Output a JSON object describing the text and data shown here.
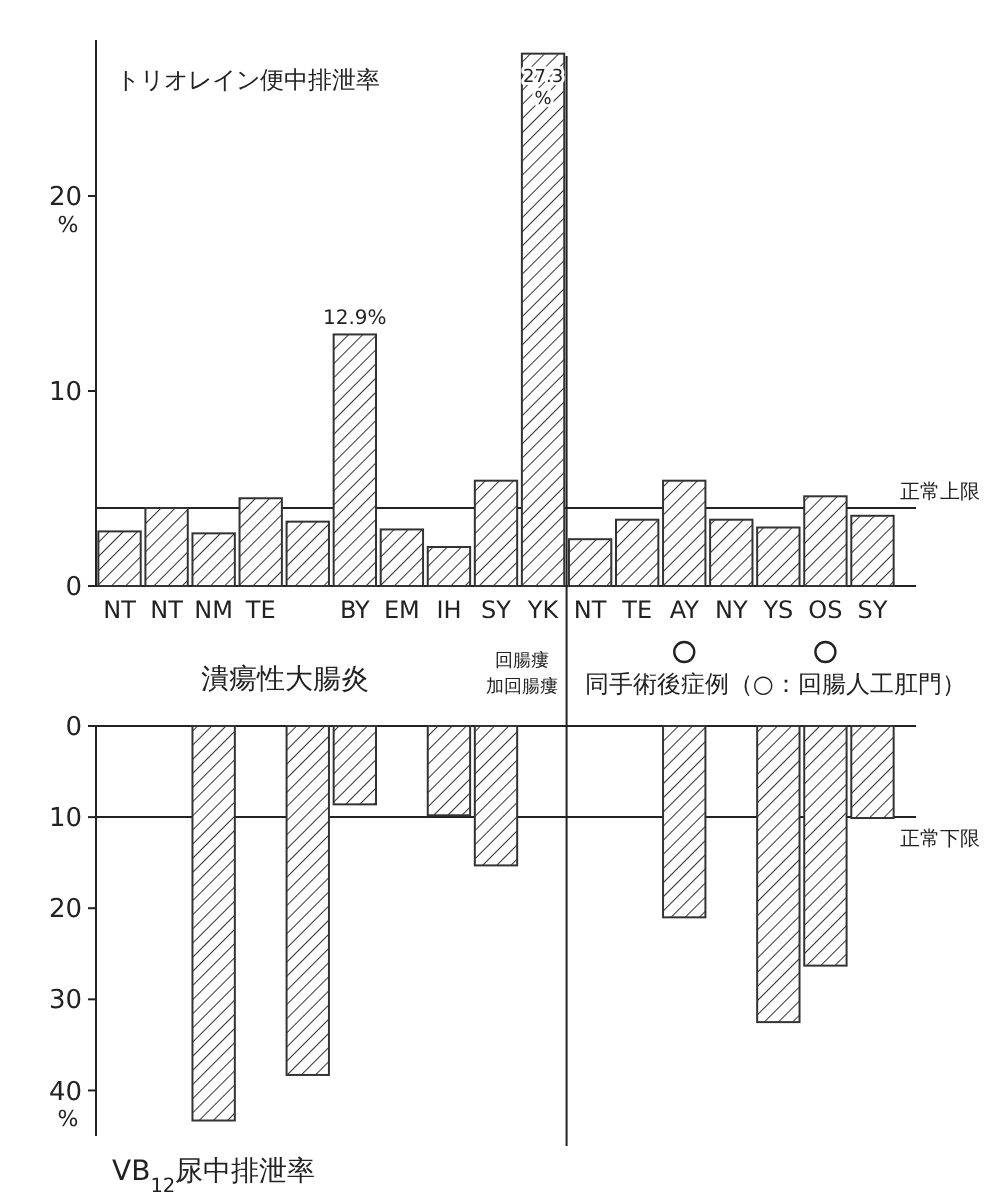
{
  "chart_data": [
    {
      "type": "bar",
      "title": "トリオレイン便中排泄率",
      "ylabel": "%",
      "categories": [
        "NT",
        "NT",
        "NM",
        "TE",
        null,
        "BY",
        "EM",
        "IH",
        "SY",
        "YK",
        "NT",
        "TE",
        "AY",
        "NY",
        "YS",
        "OS",
        "SY"
      ],
      "values": [
        2.8,
        4.0,
        2.7,
        4.5,
        3.3,
        12.9,
        2.9,
        2.0,
        5.4,
        27.3,
        2.4,
        3.4,
        5.4,
        3.4,
        3.0,
        4.6,
        3.6
      ],
      "value_labels": [
        null,
        null,
        null,
        null,
        null,
        "12.9%",
        null,
        null,
        null,
        "27.3 %",
        null,
        null,
        null,
        null,
        null,
        null,
        null
      ],
      "color": "#333333",
      "ylim": [
        0,
        28
      ],
      "yticks": [
        0,
        10,
        20
      ],
      "ref_lines": [
        {
          "axis": "y",
          "value": 4,
          "label": "正常上限"
        }
      ],
      "annotations": [
        "潰瘍性大腸炎",
        "回腸瘻",
        "加回腸瘻",
        "同手術後症例（○：回腸人工肛門）"
      ]
    },
    {
      "type": "bar",
      "title": "VB$_{12}$尿中排泄率",
      "ylabel": "%",
      "categories": [
        null,
        null,
        null,
        null,
        null,
        null,
        null,
        null,
        null,
        null,
        null,
        null,
        null,
        null,
        null,
        null,
        null
      ],
      "values": [
        null,
        null,
        43.3,
        null,
        38.3,
        8.6,
        null,
        9.8,
        15.3,
        null,
        null,
        null,
        21.0,
        null,
        32.5,
        26.3,
        10.1
      ],
      "color": "#333333",
      "ylim": [
        45,
        0
      ],
      "yticks": [
        0,
        10,
        20,
        30,
        40
      ],
      "tick_labels": "y",
      "ref_lines": [
        {
          "axis": "y",
          "value": 10,
          "label": "正常下限"
        }
      ]
    }
  ]
}
